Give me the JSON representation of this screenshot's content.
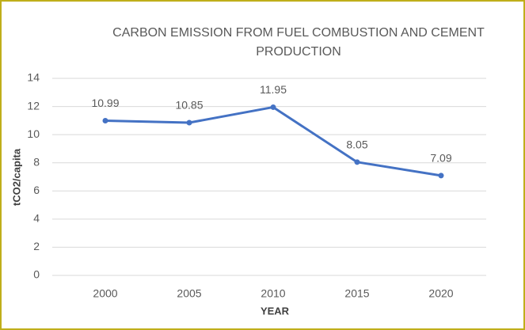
{
  "chart_data": {
    "type": "line",
    "title": "CARBON EMISSION FROM FUEL COMBUSTION AND CEMENT PRODUCTION",
    "x_label": "YEAR",
    "y_label": "tCO2/capita",
    "categories": [
      "2000",
      "2005",
      "2010",
      "2015",
      "2020"
    ],
    "series": [
      {
        "name": "tCO2/capita",
        "color": "#4472c4",
        "values": [
          10.99,
          10.85,
          11.95,
          8.05,
          7.09
        ]
      }
    ],
    "ylim": [
      0,
      14
    ],
    "yticks": [
      0,
      2,
      4,
      6,
      8,
      10,
      12,
      14
    ],
    "grid": true,
    "legend": false
  }
}
